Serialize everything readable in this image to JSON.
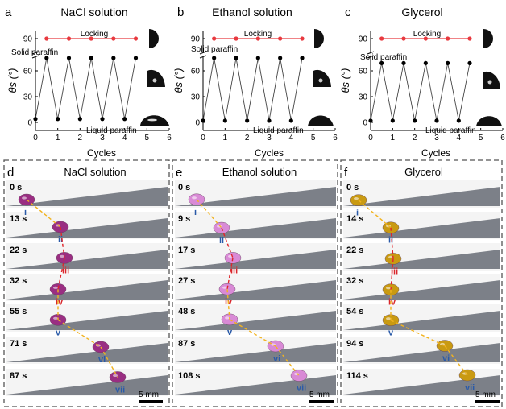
{
  "charts": [
    {
      "panel_letter": "a",
      "title": "NaCl solution",
      "locking_label": "Locking",
      "solid_label": "Solid paraffin",
      "liquid_label": "Liquid paraffin",
      "xlabel": "Cycles",
      "ylabel": "θs (°)"
    },
    {
      "panel_letter": "b",
      "title": "Ethanol solution",
      "locking_label": "Locking",
      "solid_label": "Solid paraffin",
      "liquid_label": "Liquid paraffin",
      "xlabel": "Cycles",
      "ylabel": "θs (°)"
    },
    {
      "panel_letter": "c",
      "title": "Glycerol",
      "locking_label": "Locking",
      "solid_label": "Solid paraffin",
      "liquid_label": "Liquid paraffin",
      "xlabel": "Cycles",
      "ylabel": "θs (°)"
    }
  ],
  "chart_data": [
    {
      "type": "line",
      "title": "NaCl solution",
      "xlabel": "Cycles",
      "ylabel": "θs (°)",
      "xlim": [
        0,
        6
      ],
      "xticks": [
        0,
        1,
        2,
        3,
        4,
        5,
        6
      ],
      "yticks": [
        0,
        30,
        60,
        90
      ],
      "y_axis_break": true,
      "series": [
        {
          "x": [
            0,
            0.5,
            1,
            1.5,
            2,
            2.5,
            3,
            3.5,
            4,
            4.5
          ],
          "y": [
            4,
            75,
            4,
            75,
            4,
            75,
            4,
            75,
            4,
            75
          ]
        },
        {
          "x": [
            0.5,
            1.5,
            2.5,
            3.5,
            4.5
          ],
          "y": [
            90,
            90,
            90,
            90,
            90
          ]
        }
      ]
    },
    {
      "type": "line",
      "title": "Ethanol solution",
      "xlabel": "Cycles",
      "ylabel": "θs (°)",
      "xlim": [
        0,
        6
      ],
      "xticks": [
        0,
        1,
        2,
        3,
        4,
        5,
        6
      ],
      "yticks": [
        0,
        30,
        60,
        90
      ],
      "y_axis_break": true,
      "series": [
        {
          "x": [
            0,
            0.5,
            1,
            1.5,
            2,
            2.5,
            3,
            3.5,
            4,
            4.5
          ],
          "y": [
            2,
            75,
            2,
            75,
            2,
            75,
            2,
            75,
            2,
            75
          ]
        },
        {
          "x": [
            0.5,
            1.5,
            2.5,
            3.5,
            4.5
          ],
          "y": [
            90,
            90,
            90,
            90,
            90
          ]
        }
      ]
    },
    {
      "type": "line",
      "title": "Glycerol",
      "xlabel": "Cycles",
      "ylabel": "θs (°)",
      "xlim": [
        0,
        6
      ],
      "xticks": [
        0,
        1,
        2,
        3,
        4,
        5,
        6
      ],
      "yticks": [
        0,
        30,
        60,
        90
      ],
      "y_axis_break": true,
      "series": [
        {
          "x": [
            0,
            0.5,
            1,
            1.5,
            2,
            2.5,
            3,
            3.5,
            4,
            4.5
          ],
          "y": [
            2,
            69,
            2,
            69,
            2,
            69,
            2,
            69,
            2,
            69
          ]
        },
        {
          "x": [
            0.5,
            1.5,
            2.5,
            3.5,
            4.5
          ],
          "y": [
            90,
            90,
            90,
            90,
            90
          ]
        }
      ]
    }
  ],
  "photos": [
    {
      "panel_letter": "d",
      "title": "NaCl solution",
      "drop_color": "#9a2e82",
      "times": [
        "0 s",
        "13 s",
        "22 s",
        "32 s",
        "55 s",
        "71 s",
        "87 s"
      ],
      "numerals": [
        "i",
        "ii",
        "iii",
        "iv",
        "v",
        "vi",
        "vii"
      ],
      "scale_label": "5 mm"
    },
    {
      "panel_letter": "e",
      "title": "Ethanol solution",
      "drop_color": "#d98ad6",
      "times": [
        "0 s",
        "9 s",
        "17 s",
        "27 s",
        "48 s",
        "87 s",
        "108 s"
      ],
      "numerals": [
        "i",
        "ii",
        "iii",
        "iv",
        "v",
        "vi",
        "vii"
      ],
      "scale_label": "5 mm"
    },
    {
      "panel_letter": "f",
      "title": "Glycerol",
      "drop_color": "#c99a12",
      "times": [
        "0 s",
        "14 s",
        "22 s",
        "32 s",
        "54 s",
        "94 s",
        "114 s"
      ],
      "numerals": [
        "i",
        "ii",
        "iii",
        "iv",
        "v",
        "vi",
        "vii"
      ],
      "scale_label": "5 mm"
    }
  ],
  "colors": {
    "lock_line": "#e8393f",
    "numeral_blue": "#2a5aa8",
    "numeral_red": "#d8262b",
    "path_yellow": "#f2b31f",
    "path_red": "#e0242a"
  }
}
